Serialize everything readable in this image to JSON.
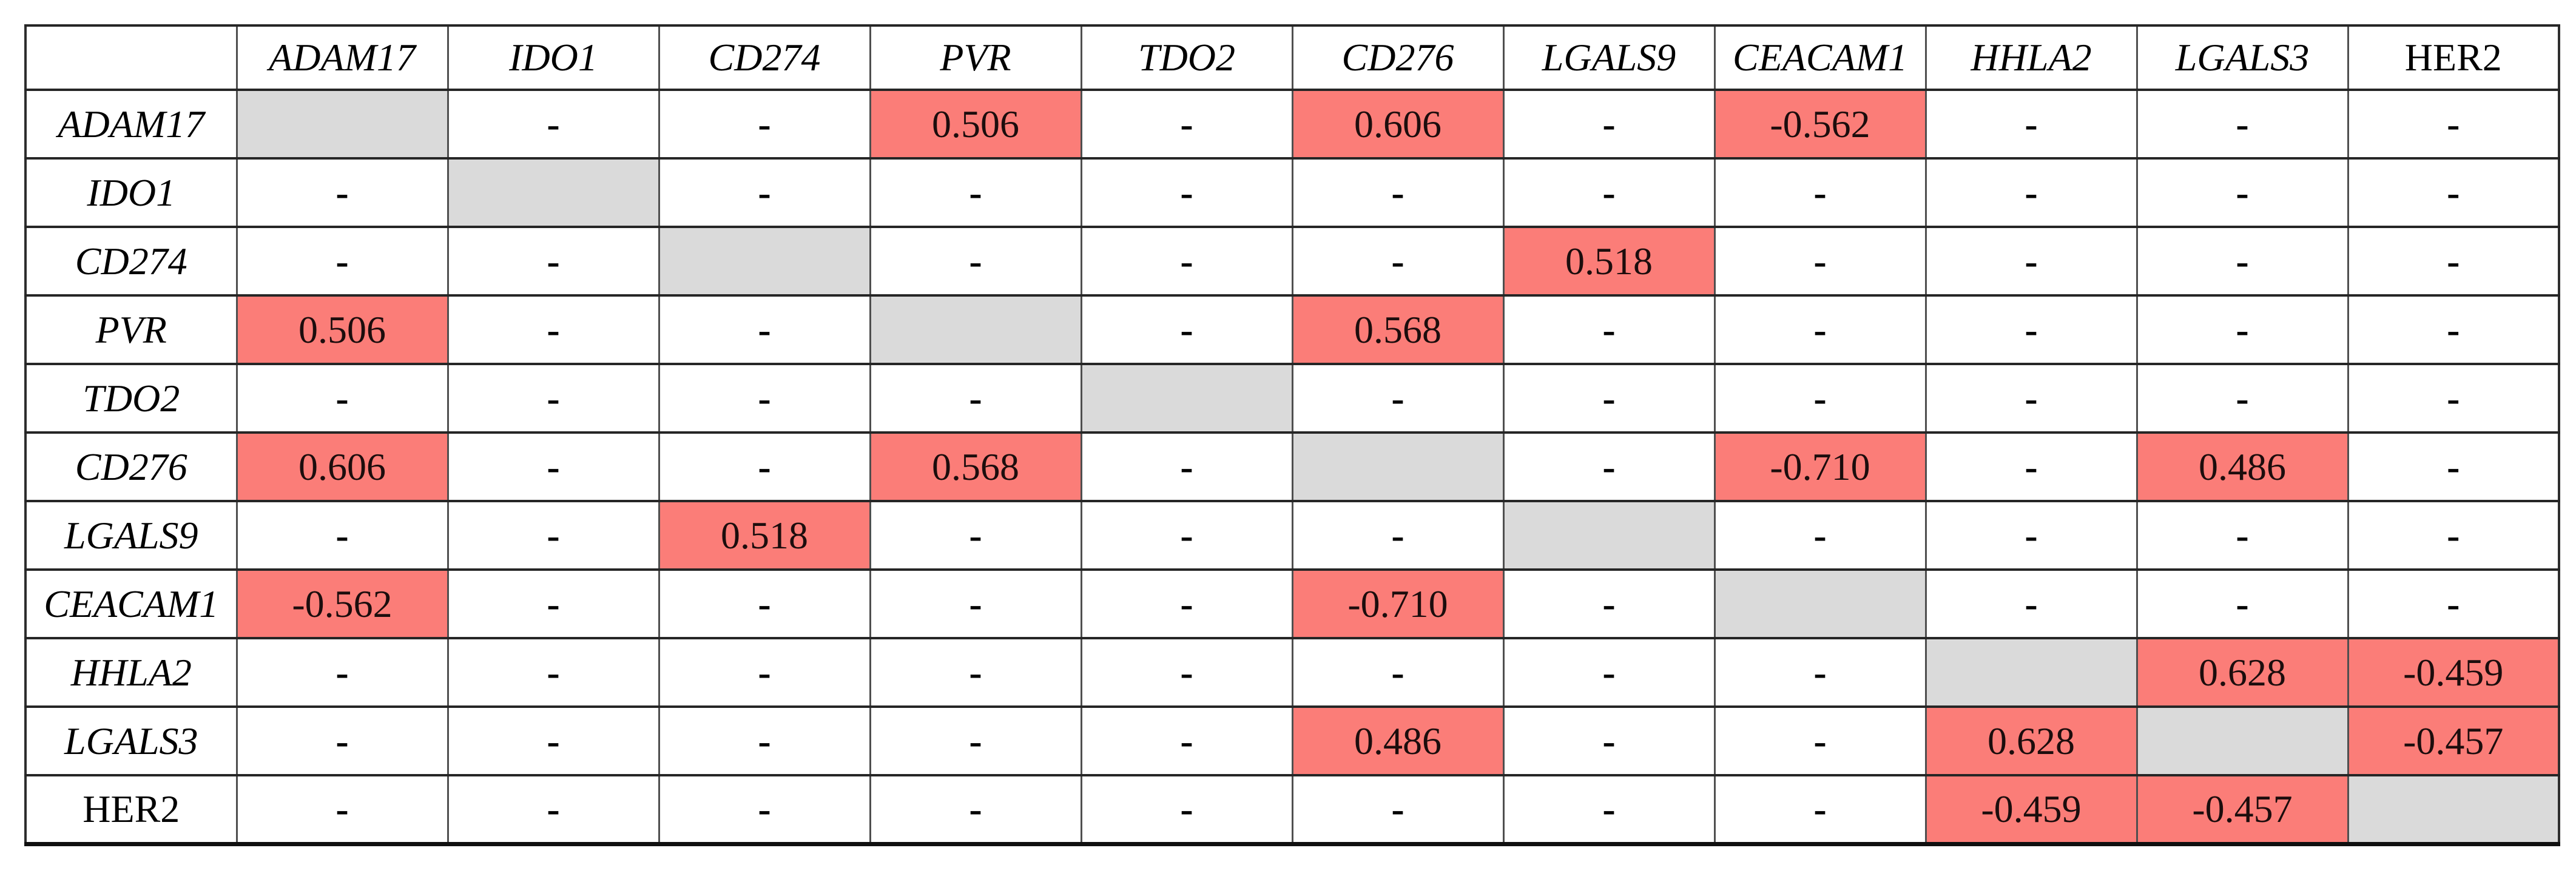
{
  "table": {
    "corner_label": "",
    "genes": [
      "ADAM17",
      "IDO1",
      "CD274",
      "PVR",
      "TDO2",
      "CD276",
      "LGALS9",
      "CEACAM1",
      "HHLA2",
      "LGALS3",
      "HER2"
    ],
    "non_italic_genes": [
      "HER2"
    ],
    "empty_symbol": "-",
    "matrix": [
      [
        "",
        "-",
        "-",
        "0.506",
        "-",
        "0.606",
        "-",
        "-0.562",
        "-",
        "-",
        "-"
      ],
      [
        "-",
        "",
        "-",
        "-",
        "-",
        "-",
        "-",
        "-",
        "-",
        "-",
        "-"
      ],
      [
        "-",
        "-",
        "",
        "-",
        "-",
        "-",
        "0.518",
        "-",
        "-",
        "-",
        "-"
      ],
      [
        "0.506",
        "-",
        "-",
        "",
        "-",
        "0.568",
        "-",
        "-",
        "-",
        "-",
        "-"
      ],
      [
        "-",
        "-",
        "-",
        "-",
        "",
        "-",
        "-",
        "-",
        "-",
        "-",
        "-"
      ],
      [
        "0.606",
        "-",
        "-",
        "0.568",
        "-",
        "",
        "-",
        "-0.710",
        "-",
        "0.486",
        "-"
      ],
      [
        "-",
        "-",
        "0.518",
        "-",
        "-",
        "-",
        "",
        "-",
        "-",
        "-",
        "-"
      ],
      [
        "-0.562",
        "-",
        "-",
        "-",
        "-",
        "-0.710",
        "-",
        "",
        "-",
        "-",
        "-"
      ],
      [
        "-",
        "-",
        "-",
        "-",
        "-",
        "-",
        "-",
        "-",
        "",
        "0.628",
        "-0.459"
      ],
      [
        "-",
        "-",
        "-",
        "-",
        "-",
        "0.486",
        "-",
        "-",
        "0.628",
        "",
        "-0.457"
      ],
      [
        "-",
        "-",
        "-",
        "-",
        "-",
        "-",
        "-",
        "-",
        "-0.459",
        "-0.457",
        ""
      ]
    ]
  },
  "colors": {
    "highlight": "#fb7d78",
    "diagonal": "#dadada",
    "border_inner_vertical": "#4f4f4f",
    "border_inner_horizontal": "#262626",
    "border_outer": "#2e2e2e",
    "text": "#000000"
  }
}
